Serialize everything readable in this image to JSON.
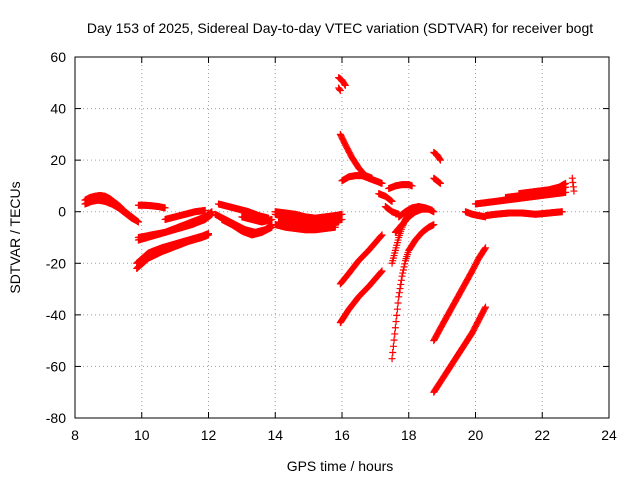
{
  "chart_data": {
    "type": "scatter",
    "title": "Day 153 of 2025, Sidereal Day-to-day VTEC variation (SDTVAR) for receiver bogt",
    "xlabel": "GPS time / hours",
    "ylabel": "SDTVAR / TECUs",
    "xlim": [
      8,
      24
    ],
    "ylim": [
      -80,
      60
    ],
    "xticks": [
      "8",
      "10",
      "12",
      "14",
      "16",
      "18",
      "20",
      "22",
      "24"
    ],
    "yticks": [
      "-80",
      "-60",
      "-40",
      "-20",
      "0",
      "20",
      "40",
      "60"
    ],
    "grid": true,
    "marker_color": "#ff0000",
    "series": [
      {
        "x": [
          8.3,
          8.45,
          8.6,
          8.75,
          8.9,
          9.05,
          9.2,
          9.35,
          9.5,
          9.65,
          9.8,
          9.9
        ],
        "y": [
          4.5,
          5.5,
          6,
          6.3,
          6,
          5,
          3.5,
          2,
          0,
          -1.5,
          -3,
          -4
        ]
      },
      {
        "x": [
          8.3,
          8.5,
          8.7,
          8.9,
          9.1,
          9.3,
          9.5,
          9.7,
          9.85
        ],
        "y": [
          3,
          4,
          4.5,
          4,
          3,
          1.5,
          -0.5,
          -2.5,
          -3.5
        ]
      },
      {
        "x": [
          9.9,
          10.1,
          10.3,
          10.5,
          10.7
        ],
        "y": [
          2.5,
          2.5,
          2.3,
          2,
          1.5
        ]
      },
      {
        "x": [
          9.9,
          10.3,
          10.7,
          11.1,
          11.5,
          11.9,
          12.1
        ],
        "y": [
          -10,
          -9,
          -8,
          -6,
          -4,
          -2,
          0
        ]
      },
      {
        "x": [
          9.9,
          10.3,
          10.7,
          11.1,
          11.5,
          11.9,
          12.1
        ],
        "y": [
          -11,
          -9.5,
          -8,
          -6.5,
          -5,
          -3,
          -1
        ]
      },
      {
        "x": [
          9.85,
          10.2,
          10.6,
          11,
          11.4,
          11.8,
          12.0
        ],
        "y": [
          -20,
          -16,
          -14,
          -12.5,
          -11,
          -9.5,
          -8.5
        ]
      },
      {
        "x": [
          9.85,
          10.2,
          10.6,
          11,
          11.4,
          11.8,
          12.0
        ],
        "y": [
          -22,
          -18,
          -15.5,
          -13.5,
          -11.5,
          -10,
          -9
        ]
      },
      {
        "x": [
          10.7,
          11,
          11.3,
          11.6,
          11.9
        ],
        "y": [
          -3,
          -2,
          -1,
          0,
          0.5
        ]
      },
      {
        "x": [
          12.3,
          12.6,
          12.9,
          13.2,
          13.5,
          13.8
        ],
        "y": [
          3,
          2,
          1,
          0,
          -1.5,
          -2.5
        ]
      },
      {
        "x": [
          12.2,
          12.5,
          12.8,
          13.1,
          13.4,
          13.7,
          13.9
        ],
        "y": [
          -1,
          -3,
          -5,
          -7,
          -8,
          -7,
          -5
        ]
      },
      {
        "x": [
          12.4,
          12.7,
          13.0,
          13.3,
          13.6,
          13.9
        ],
        "y": [
          -3,
          -5,
          -7.5,
          -9,
          -8,
          -6
        ]
      },
      {
        "x": [
          13.0,
          13.3,
          13.6,
          13.9
        ],
        "y": [
          -2,
          -3,
          -4,
          -3
        ]
      },
      {
        "x": [
          14.0,
          14.3,
          14.6,
          14.9,
          15.2,
          15.5,
          15.8,
          16.0
        ],
        "y": [
          -1,
          -2,
          -3,
          -3.5,
          -4,
          -4,
          -3.5,
          -3
        ]
      },
      {
        "x": [
          14.0,
          14.3,
          14.6,
          14.9,
          15.2,
          15.5,
          15.8
        ],
        "y": [
          -5,
          -6,
          -6.5,
          -7,
          -7,
          -6.5,
          -6
        ]
      },
      {
        "x": [
          14.1,
          14.4,
          14.7,
          15.0,
          15.3,
          15.6,
          15.9
        ],
        "y": [
          -4,
          -4.5,
          -5,
          -5.5,
          -5,
          -4.5,
          -4
        ]
      },
      {
        "x": [
          14.0,
          14.3,
          14.6,
          14.9,
          15.2,
          15.5,
          15.8,
          16.0
        ],
        "y": [
          0,
          -0.5,
          -1,
          -2,
          -2.5,
          -2,
          -1.5,
          -1
        ]
      },
      {
        "x": [
          15.9,
          16.0,
          16.1
        ],
        "y": [
          52,
          51,
          49
        ]
      },
      {
        "x": [
          15.9,
          15.95
        ],
        "y": [
          48,
          47
        ]
      },
      {
        "x": [
          15.95,
          16.1,
          16.3,
          16.5,
          16.7,
          16.9
        ],
        "y": [
          30,
          26,
          21,
          17,
          14,
          13
        ]
      },
      {
        "x": [
          16.0,
          16.2,
          16.4,
          16.6,
          16.8,
          17.0,
          17.2
        ],
        "y": [
          12,
          13.5,
          14,
          14,
          13,
          12,
          11
        ]
      },
      {
        "x": [
          17.1,
          17.3,
          17.5
        ],
        "y": [
          7,
          6,
          4
        ]
      },
      {
        "x": [
          17.3,
          17.5,
          17.7
        ],
        "y": [
          2,
          0,
          -1
        ]
      },
      {
        "x": [
          17.4,
          17.6,
          17.8,
          18.0,
          18.1
        ],
        "y": [
          9,
          10,
          10.5,
          10.5,
          10
        ]
      },
      {
        "x": [
          15.95,
          16.2,
          16.5,
          16.8,
          17.0,
          17.2
        ],
        "y": [
          -28,
          -24,
          -19,
          -15,
          -12,
          -9
        ]
      },
      {
        "x": [
          15.95,
          16.2,
          16.5,
          16.8,
          17.0,
          17.2
        ],
        "y": [
          -43,
          -38,
          -33,
          -29,
          -26,
          -23
        ]
      },
      {
        "x": [
          17.5,
          17.6,
          17.7,
          17.8,
          17.9,
          18.0,
          18.2,
          18.4,
          18.6,
          18.75
        ],
        "y": [
          -57,
          -45,
          -33,
          -25,
          -19,
          -15,
          -11,
          -8,
          -6,
          -5
        ]
      },
      {
        "x": [
          17.5,
          17.6,
          17.7,
          17.8,
          17.9,
          18.0,
          18.2,
          18.4,
          18.6
        ],
        "y": [
          -20,
          -15,
          -10,
          -6,
          -3,
          -1,
          1,
          1.5,
          1
        ]
      },
      {
        "x": [
          17.6,
          17.8,
          18.0,
          18.2,
          18.4,
          18.6,
          18.75
        ],
        "y": [
          -8,
          -5,
          -2,
          0,
          1,
          1,
          0
        ]
      },
      {
        "x": [
          17.7,
          17.9,
          18.1,
          18.3,
          18.5,
          18.7
        ],
        "y": [
          -2,
          0,
          1.5,
          2,
          1.5,
          0.5
        ]
      },
      {
        "x": [
          18.75,
          18.85,
          18.95
        ],
        "y": [
          23,
          22,
          20
        ]
      },
      {
        "x": [
          18.75,
          18.85,
          18.95
        ],
        "y": [
          13,
          12,
          11
        ]
      },
      {
        "x": [
          18.75,
          19.0,
          19.3,
          19.6,
          19.9,
          20.1,
          20.3
        ],
        "y": [
          -50,
          -44,
          -37,
          -30,
          -23,
          -18,
          -14
        ]
      },
      {
        "x": [
          18.75,
          19.0,
          19.3,
          19.6,
          19.9,
          20.1,
          20.3
        ],
        "y": [
          -70,
          -65,
          -59,
          -53,
          -47,
          -42,
          -37
        ]
      },
      {
        "x": [
          19.7,
          19.9,
          20.1,
          20.3
        ],
        "y": [
          0,
          -1,
          -1.5,
          -2
        ]
      },
      {
        "x": [
          20.3,
          20.6,
          21.0,
          21.4,
          21.8,
          22.2,
          22.6
        ],
        "y": [
          -1.5,
          -1,
          -0.5,
          -0.5,
          -1,
          -0.5,
          0
        ]
      },
      {
        "x": [
          20.0,
          20.3,
          20.6,
          20.9,
          21.2,
          21.5,
          21.8,
          22.1,
          22.4,
          22.7
        ],
        "y": [
          3,
          3.5,
          4,
          4.5,
          5,
          5.5,
          6,
          6.5,
          7,
          7.5
        ]
      },
      {
        "x": [
          20.9,
          21.2,
          21.5,
          21.8,
          22.1,
          22.4,
          22.7
        ],
        "y": [
          5.5,
          6,
          6.5,
          7,
          7.5,
          8.5,
          9.5
        ]
      },
      {
        "x": [
          21.3,
          21.6,
          21.9,
          22.2,
          22.5,
          22.7
        ],
        "y": [
          7,
          7.5,
          8,
          8.5,
          9.5,
          11
        ]
      },
      {
        "x": [
          22.9,
          22.95
        ],
        "y": [
          13,
          8
        ]
      }
    ]
  }
}
